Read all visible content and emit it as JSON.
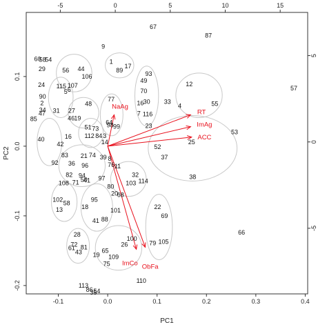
{
  "chart_data": {
    "type": "scatter",
    "subtype": "pca-biplot",
    "title": "",
    "xlabel": "PC1",
    "ylabel": "PC2",
    "xlim": [
      -0.165,
      0.405
    ],
    "ylim": [
      -0.212,
      0.192
    ],
    "x_ticks": [
      -0.1,
      0.0,
      0.1,
      0.2,
      0.3,
      0.4
    ],
    "y_ticks": [
      -0.2,
      -0.1,
      0.0,
      0.1
    ],
    "top_axis": {
      "lim": [
        -8.1,
        17.5
      ],
      "ticks": [
        -5,
        0,
        5,
        10,
        15
      ]
    },
    "right_axis": {
      "lim": [
        -8.8,
        7.5
      ],
      "ticks": [
        -5,
        0,
        5
      ]
    },
    "grid": false,
    "colors": {
      "points": "#111111",
      "ellipses": "#c8c8c8",
      "vectors": "#e8101c",
      "frame": "#333333"
    },
    "points": [
      {
        "label": "67",
        "x": 0.092,
        "y": 0.171
      },
      {
        "label": "87",
        "x": 0.204,
        "y": 0.159
      },
      {
        "label": "9",
        "x": -0.009,
        "y": 0.143
      },
      {
        "label": "60",
        "x": -0.142,
        "y": 0.125
      },
      {
        "label": "58",
        "x": -0.132,
        "y": 0.124
      },
      {
        "label": "54",
        "x": -0.12,
        "y": 0.124
      },
      {
        "label": "29",
        "x": -0.133,
        "y": 0.111
      },
      {
        "label": "56",
        "x": -0.085,
        "y": 0.109
      },
      {
        "label": "44",
        "x": -0.054,
        "y": 0.111
      },
      {
        "label": "106",
        "x": -0.042,
        "y": 0.1
      },
      {
        "label": "1",
        "x": 0.007,
        "y": 0.121
      },
      {
        "label": "17",
        "x": 0.041,
        "y": 0.115
      },
      {
        "label": "89",
        "x": 0.024,
        "y": 0.109
      },
      {
        "label": "93",
        "x": 0.083,
        "y": 0.104
      },
      {
        "label": "49",
        "x": 0.073,
        "y": 0.094
      },
      {
        "label": "70",
        "x": 0.073,
        "y": 0.079
      },
      {
        "label": "24",
        "x": -0.134,
        "y": 0.088
      },
      {
        "label": "115",
        "x": -0.094,
        "y": 0.086
      },
      {
        "label": "107",
        "x": -0.071,
        "y": 0.087
      },
      {
        "label": "5",
        "x": -0.085,
        "y": 0.078
      },
      {
        "label": "6",
        "x": -0.078,
        "y": 0.081
      },
      {
        "label": "12",
        "x": 0.165,
        "y": 0.089
      },
      {
        "label": "57",
        "x": 0.377,
        "y": 0.083
      },
      {
        "label": "90",
        "x": -0.132,
        "y": 0.071
      },
      {
        "label": "2",
        "x": -0.133,
        "y": 0.062
      },
      {
        "label": "34",
        "x": -0.132,
        "y": 0.052
      },
      {
        "label": "47",
        "x": -0.133,
        "y": 0.047
      },
      {
        "label": "31",
        "x": -0.104,
        "y": 0.051
      },
      {
        "label": "27",
        "x": -0.073,
        "y": 0.051
      },
      {
        "label": "48",
        "x": -0.039,
        "y": 0.061
      },
      {
        "label": "55",
        "x": 0.217,
        "y": 0.061
      },
      {
        "label": "33",
        "x": 0.121,
        "y": 0.064
      },
      {
        "label": "4",
        "x": 0.146,
        "y": 0.058
      },
      {
        "label": "16",
        "x": 0.066,
        "y": 0.062
      },
      {
        "label": "30",
        "x": 0.079,
        "y": 0.064
      },
      {
        "label": "85",
        "x": -0.15,
        "y": 0.039
      },
      {
        "label": "46",
        "x": -0.074,
        "y": 0.04
      },
      {
        "label": "19",
        "x": -0.061,
        "y": 0.04
      },
      {
        "label": "77",
        "x": 0.007,
        "y": 0.067
      },
      {
        "label": "7",
        "x": 0.063,
        "y": 0.047
      },
      {
        "label": "116",
        "x": 0.081,
        "y": 0.046
      },
      {
        "label": "98",
        "x": 0.005,
        "y": 0.03
      },
      {
        "label": "51",
        "x": -0.04,
        "y": 0.027
      },
      {
        "label": "73",
        "x": -0.025,
        "y": 0.025
      },
      {
        "label": "99",
        "x": 0.018,
        "y": 0.028
      },
      {
        "label": "64",
        "x": 0.003,
        "y": 0.034
      },
      {
        "label": "23",
        "x": 0.083,
        "y": 0.029
      },
      {
        "label": "112",
        "x": -0.037,
        "y": 0.015
      },
      {
        "label": "84",
        "x": -0.018,
        "y": 0.015
      },
      {
        "label": "3",
        "x": -0.006,
        "y": 0.015
      },
      {
        "label": "53",
        "x": 0.257,
        "y": 0.02
      },
      {
        "label": "40",
        "x": -0.135,
        "y": 0.01
      },
      {
        "label": "16",
        "x": -0.08,
        "y": 0.014
      },
      {
        "label": "42",
        "x": -0.096,
        "y": 0.003
      },
      {
        "label": "14",
        "x": -0.006,
        "y": 0.006
      },
      {
        "label": "25",
        "x": 0.17,
        "y": 0.006
      },
      {
        "label": "52",
        "x": 0.101,
        "y": -0.001
      },
      {
        "label": "37",
        "x": 0.115,
        "y": -0.016
      },
      {
        "label": "83",
        "x": -0.087,
        "y": -0.013
      },
      {
        "label": "21",
        "x": -0.048,
        "y": -0.014
      },
      {
        "label": "74",
        "x": -0.031,
        "y": -0.013
      },
      {
        "label": "39",
        "x": -0.009,
        "y": -0.016
      },
      {
        "label": "8",
        "x": 0.004,
        "y": -0.018
      },
      {
        "label": "92",
        "x": -0.107,
        "y": -0.024
      },
      {
        "label": "36",
        "x": -0.073,
        "y": -0.025
      },
      {
        "label": "96",
        "x": -0.046,
        "y": -0.028
      },
      {
        "label": "76",
        "x": 0.007,
        "y": -0.027
      },
      {
        "label": "11",
        "x": 0.02,
        "y": -0.029
      },
      {
        "label": "82",
        "x": -0.078,
        "y": -0.041
      },
      {
        "label": "94",
        "x": -0.052,
        "y": -0.042
      },
      {
        "label": "50",
        "x": -0.048,
        "y": -0.048
      },
      {
        "label": "41",
        "x": -0.042,
        "y": -0.049
      },
      {
        "label": "97",
        "x": -0.012,
        "y": -0.046
      },
      {
        "label": "32",
        "x": 0.056,
        "y": -0.041
      },
      {
        "label": "114",
        "x": 0.072,
        "y": -0.05
      },
      {
        "label": "103",
        "x": 0.047,
        "y": -0.053
      },
      {
        "label": "38",
        "x": 0.172,
        "y": -0.044
      },
      {
        "label": "108",
        "x": -0.089,
        "y": -0.053
      },
      {
        "label": "71",
        "x": -0.065,
        "y": -0.052
      },
      {
        "label": "80",
        "x": 0.006,
        "y": -0.058
      },
      {
        "label": "20",
        "x": 0.014,
        "y": -0.068
      },
      {
        "label": "68",
        "x": 0.026,
        "y": -0.07
      },
      {
        "label": "102",
        "x": -0.101,
        "y": -0.077
      },
      {
        "label": "58",
        "x": -0.083,
        "y": -0.082
      },
      {
        "label": "95",
        "x": -0.027,
        "y": -0.077
      },
      {
        "label": "13",
        "x": -0.098,
        "y": -0.091
      },
      {
        "label": "18",
        "x": -0.046,
        "y": -0.087
      },
      {
        "label": "101",
        "x": 0.016,
        "y": -0.092
      },
      {
        "label": "22",
        "x": 0.101,
        "y": -0.087
      },
      {
        "label": "69",
        "x": 0.115,
        "y": -0.1
      },
      {
        "label": "66",
        "x": 0.271,
        "y": -0.124
      },
      {
        "label": "41",
        "x": -0.024,
        "y": -0.107
      },
      {
        "label": "88",
        "x": -0.006,
        "y": -0.105
      },
      {
        "label": "28",
        "x": -0.062,
        "y": -0.127
      },
      {
        "label": "100",
        "x": 0.049,
        "y": -0.133
      },
      {
        "label": "72",
        "x": -0.068,
        "y": -0.141
      },
      {
        "label": "81",
        "x": -0.048,
        "y": -0.145
      },
      {
        "label": "61",
        "x": -0.073,
        "y": -0.146
      },
      {
        "label": "43",
        "x": -0.059,
        "y": -0.152
      },
      {
        "label": "26",
        "x": 0.034,
        "y": -0.141
      },
      {
        "label": "79",
        "x": 0.091,
        "y": -0.139
      },
      {
        "label": "105",
        "x": 0.113,
        "y": -0.137
      },
      {
        "label": "65",
        "x": -0.005,
        "y": -0.15
      },
      {
        "label": "19",
        "x": -0.023,
        "y": -0.156
      },
      {
        "label": "109",
        "x": 0.012,
        "y": -0.159
      },
      {
        "label": "75",
        "x": -0.002,
        "y": -0.169
      },
      {
        "label": "110",
        "x": 0.068,
        "y": -0.193
      },
      {
        "label": "113",
        "x": -0.049,
        "y": -0.2
      },
      {
        "label": "86",
        "x": -0.037,
        "y": -0.206
      },
      {
        "label": "35",
        "x": -0.029,
        "y": -0.21
      },
      {
        "label": "54",
        "x": -0.022,
        "y": -0.208
      }
    ],
    "groups": [
      {
        "cx": -0.068,
        "cy": 0.105,
        "rx": 0.036,
        "ry": 0.027,
        "rot": 0
      },
      {
        "cx": 0.024,
        "cy": 0.116,
        "rx": 0.029,
        "ry": 0.018,
        "rot": 0
      },
      {
        "cx": 0.079,
        "cy": 0.072,
        "rx": 0.024,
        "ry": 0.043,
        "rot": 0
      },
      {
        "cx": 0.185,
        "cy": 0.073,
        "rx": 0.047,
        "ry": 0.032,
        "rot": 0
      },
      {
        "cx": -0.095,
        "cy": 0.07,
        "rx": 0.025,
        "ry": 0.029,
        "rot": 0
      },
      {
        "cx": -0.049,
        "cy": 0.048,
        "rx": 0.031,
        "ry": 0.022,
        "rot": 0
      },
      {
        "cx": 0.008,
        "cy": 0.045,
        "rx": 0.023,
        "ry": 0.03,
        "rot": 0
      },
      {
        "cx": -0.034,
        "cy": 0.019,
        "rx": 0.025,
        "ry": 0.021,
        "rot": 0
      },
      {
        "cx": -0.118,
        "cy": 0.006,
        "rx": 0.025,
        "ry": 0.034,
        "rot": 0
      },
      {
        "cx": -0.052,
        "cy": -0.028,
        "rx": 0.047,
        "ry": 0.03,
        "rot": 0
      },
      {
        "cx": 0.172,
        "cy": -0.003,
        "rx": 0.09,
        "ry": 0.047,
        "rot": 0
      },
      {
        "cx": 0.042,
        "cy": -0.047,
        "rx": 0.036,
        "ry": 0.025,
        "rot": 0
      },
      {
        "cx": -0.088,
        "cy": -0.08,
        "rx": 0.026,
        "ry": 0.028,
        "rot": 0
      },
      {
        "cx": -0.022,
        "cy": -0.088,
        "rx": 0.032,
        "ry": 0.034,
        "rot": 0
      },
      {
        "cx": 0.104,
        "cy": -0.116,
        "rx": 0.027,
        "ry": 0.047,
        "rot": 0
      },
      {
        "cx": -0.06,
        "cy": -0.143,
        "rx": 0.023,
        "ry": 0.025,
        "rot": 0
      },
      {
        "cx": 0.022,
        "cy": -0.146,
        "rx": 0.047,
        "ry": 0.032,
        "rot": 0
      }
    ],
    "vectors": [
      {
        "label": "NaAg",
        "x": 0.013,
        "y": 0.045
      },
      {
        "label": "RT",
        "x": 0.168,
        "y": 0.045
      },
      {
        "label": "ImAg",
        "x": 0.168,
        "y": 0.028
      },
      {
        "label": "ACC",
        "x": 0.17,
        "y": 0.013
      },
      {
        "label": "ImCo",
        "x": 0.058,
        "y": -0.148
      },
      {
        "label": "ObFa",
        "x": 0.076,
        "y": -0.145
      }
    ],
    "vector_labels": [
      {
        "label": "NaAg",
        "x": 0.025,
        "y": 0.057
      },
      {
        "label": "RT",
        "x": 0.19,
        "y": 0.049
      },
      {
        "label": "ImAg",
        "x": 0.196,
        "y": 0.031
      },
      {
        "label": "ACC",
        "x": 0.196,
        "y": 0.013
      },
      {
        "label": "ImCo",
        "x": 0.045,
        "y": -0.168
      },
      {
        "label": "ObFa",
        "x": 0.086,
        "y": -0.173
      }
    ]
  }
}
